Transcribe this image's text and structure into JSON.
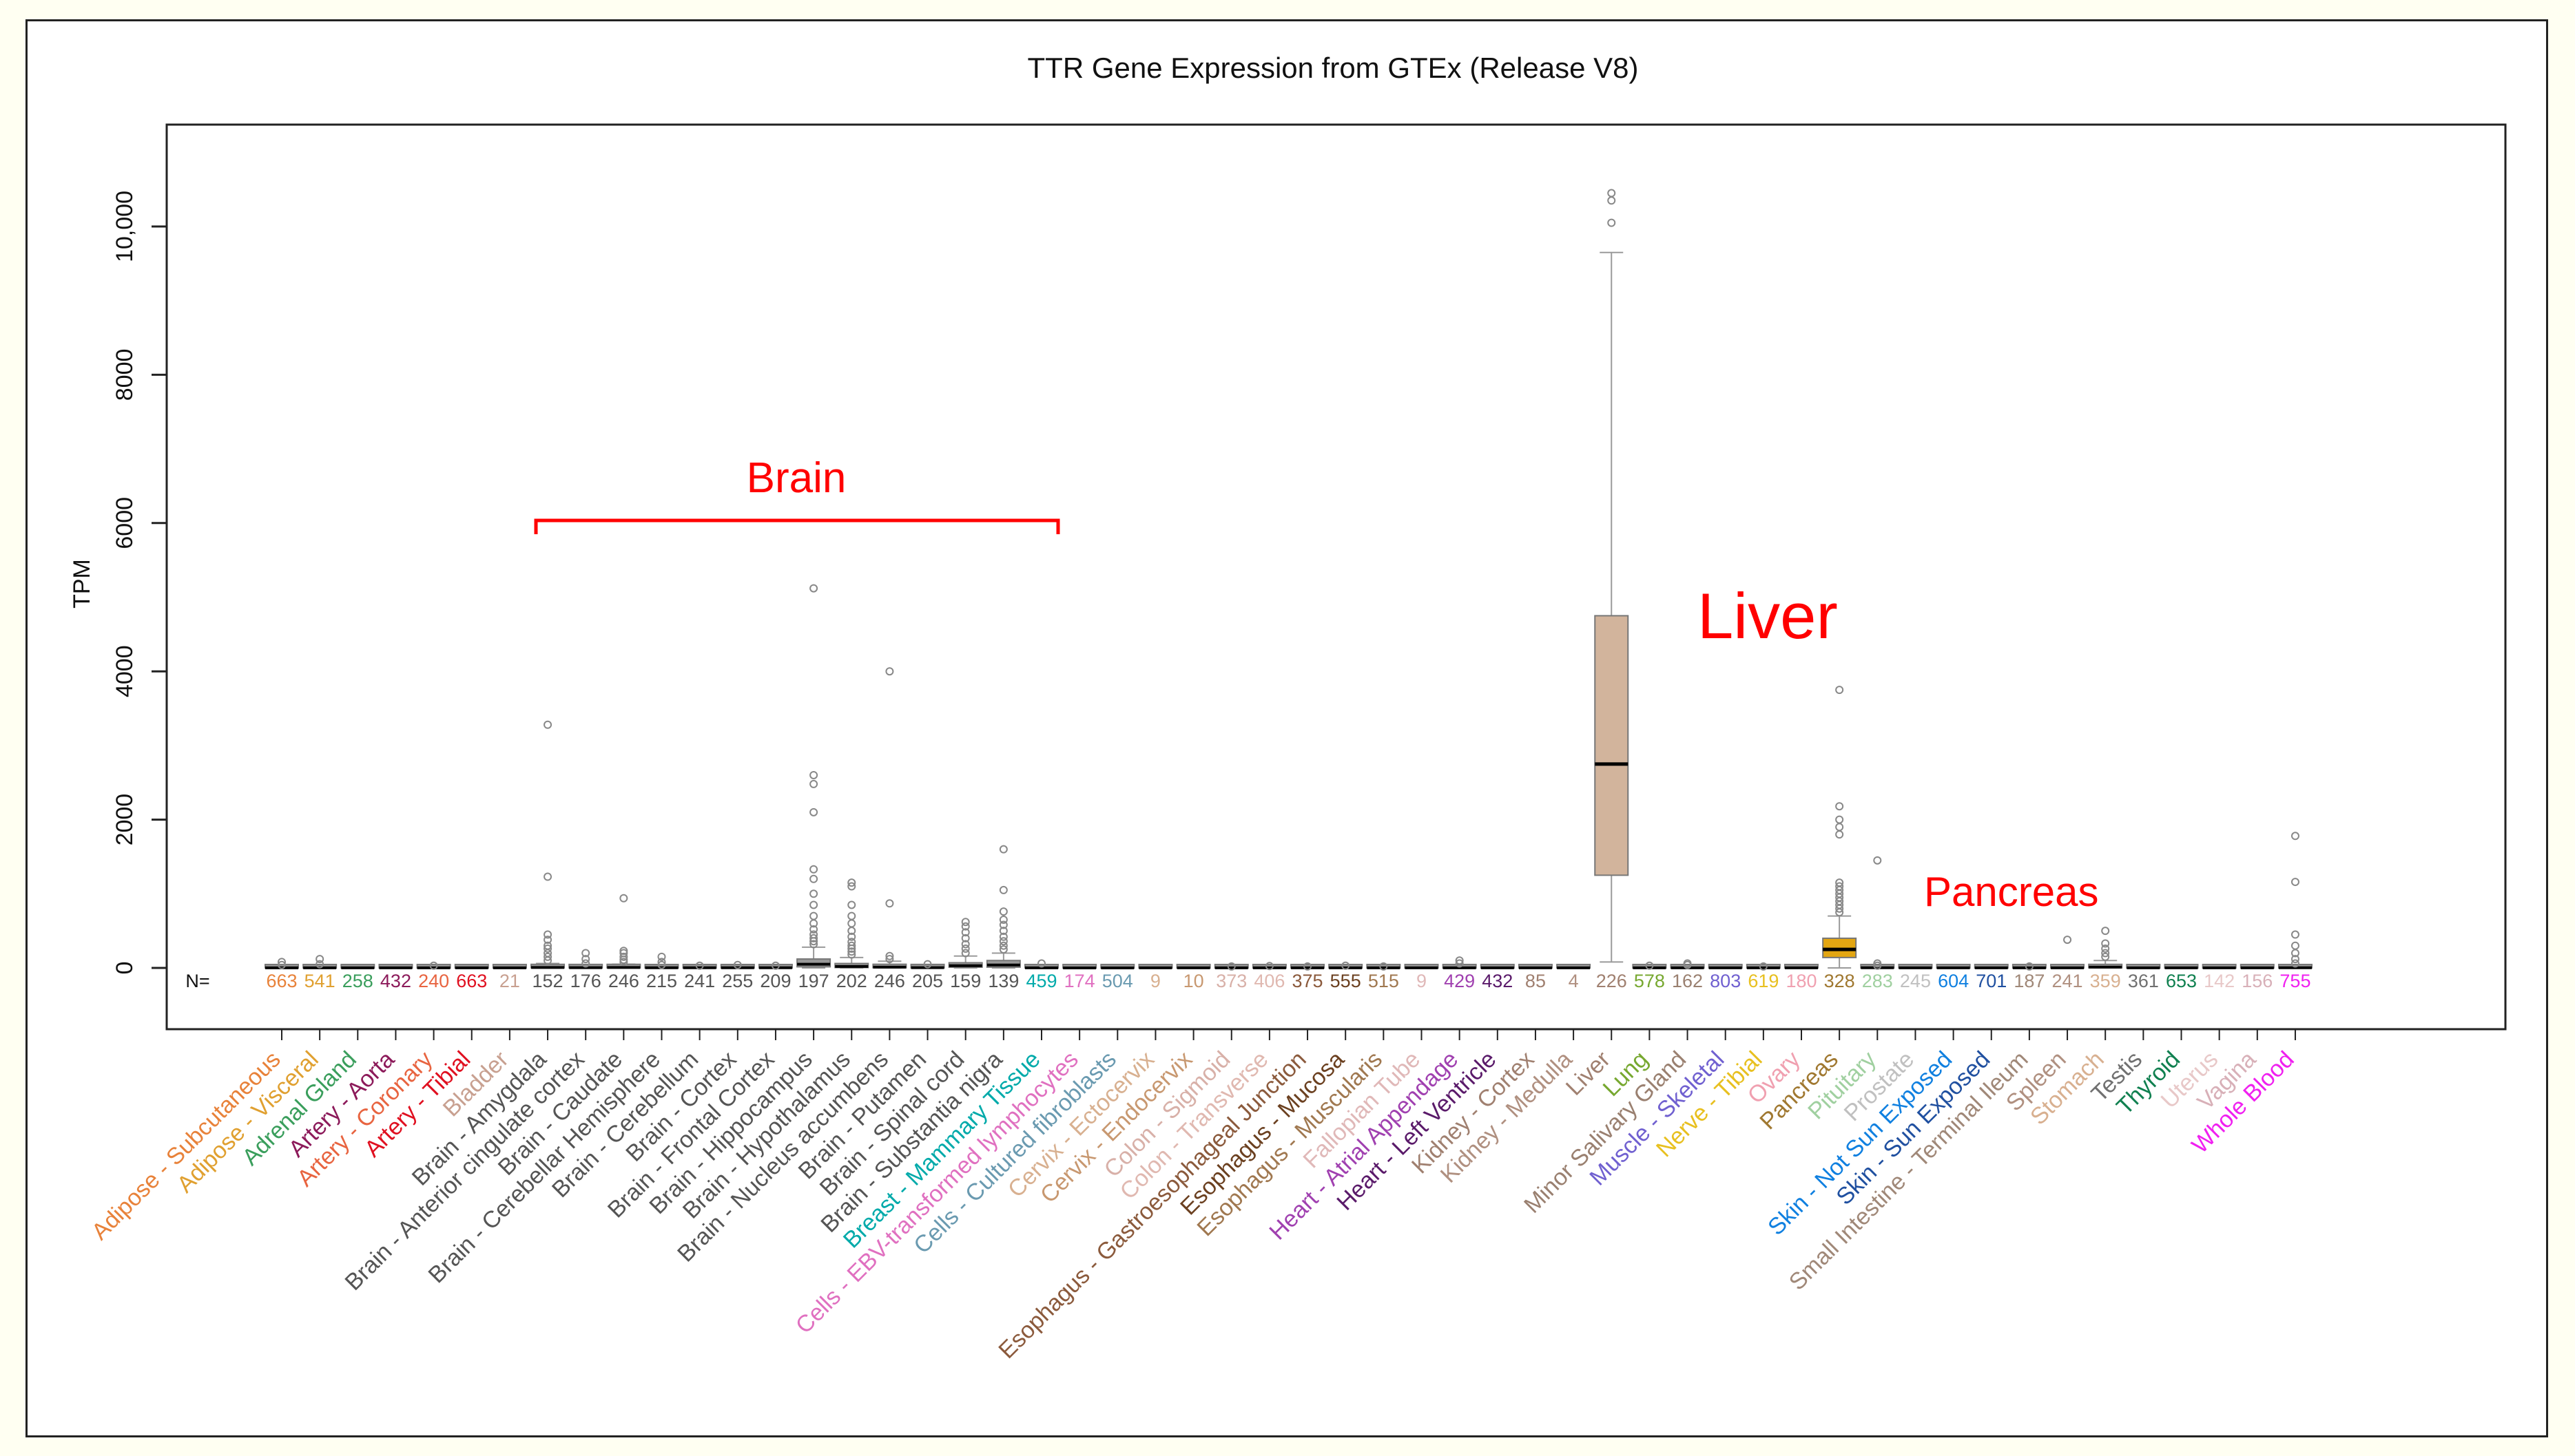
{
  "chart_data": {
    "type": "box",
    "title": "TTR Gene Expression from GTEx (Release V8)",
    "ylabel": "TPM",
    "xlabel": "",
    "ylim": [
      -650,
      11000
    ],
    "yticks": [
      0,
      2000,
      4000,
      6000,
      8000,
      10000
    ],
    "ytick_labels": [
      "0",
      "2000",
      "4000",
      "6000",
      "8000",
      "10,000"
    ],
    "n_prefix": "N=",
    "annotations": {
      "brain": "Brain",
      "liver": "Liver",
      "pancreas": "Pancreas"
    },
    "colors": {
      "default_box": "#999999",
      "liver_box": "#d2b49c",
      "pancreas_box": "#e3a612",
      "annotation": "#ff0000"
    },
    "categories": [
      {
        "label": "Adipose - Subcutaneous",
        "n": "663",
        "color": "#e8823a",
        "q1": 0,
        "median": 1,
        "q3": 3,
        "upper": 10,
        "outliers": [
          40,
          80
        ]
      },
      {
        "label": "Adipose - Visceral",
        "n": "541",
        "color": "#e0a030",
        "q1": 0,
        "median": 1,
        "q3": 4,
        "upper": 12,
        "outliers": [
          50,
          120
        ]
      },
      {
        "label": "Adrenal Gland",
        "n": "258",
        "color": "#3a9e5c",
        "q1": 0,
        "median": 1,
        "q3": 2,
        "upper": 6,
        "outliers": []
      },
      {
        "label": "Artery - Aorta",
        "n": "432",
        "color": "#8c1a5a",
        "q1": 0,
        "median": 1,
        "q3": 2,
        "upper": 6,
        "outliers": []
      },
      {
        "label": "Artery - Coronary",
        "n": "240",
        "color": "#e86440",
        "q1": 0,
        "median": 1,
        "q3": 2,
        "upper": 6,
        "outliers": [
          30
        ]
      },
      {
        "label": "Artery - Tibial",
        "n": "663",
        "color": "#e01020",
        "q1": 0,
        "median": 1,
        "q3": 2,
        "upper": 6,
        "outliers": []
      },
      {
        "label": "Bladder",
        "n": "21",
        "color": "#c8a090",
        "q1": 0,
        "median": 1,
        "q3": 2,
        "upper": 5,
        "outliers": []
      },
      {
        "label": "Brain - Amygdala",
        "n": "152",
        "color": "#555555",
        "q1": 2,
        "median": 6,
        "q3": 20,
        "upper": 60,
        "outliers": [
          100,
          150,
          200,
          260,
          300,
          380,
          450,
          1230,
          3280
        ]
      },
      {
        "label": "Brain - Anterior cingulate cortex",
        "n": "176",
        "color": "#555555",
        "q1": 1,
        "median": 4,
        "q3": 10,
        "upper": 30,
        "outliers": [
          60,
          120,
          200
        ]
      },
      {
        "label": "Brain - Caudate",
        "n": "246",
        "color": "#555555",
        "q1": 2,
        "median": 6,
        "q3": 20,
        "upper": 50,
        "outliers": [
          80,
          110,
          150,
          200,
          230,
          940
        ]
      },
      {
        "label": "Brain - Cerebellar Hemisphere",
        "n": "215",
        "color": "#555555",
        "q1": 0,
        "median": 2,
        "q3": 5,
        "upper": 15,
        "outliers": [
          40,
          80,
          150
        ]
      },
      {
        "label": "Brain - Cerebellum",
        "n": "241",
        "color": "#555555",
        "q1": 0,
        "median": 2,
        "q3": 5,
        "upper": 15,
        "outliers": [
          30
        ]
      },
      {
        "label": "Brain - Cortex",
        "n": "255",
        "color": "#555555",
        "q1": 0,
        "median": 2,
        "q3": 5,
        "upper": 15,
        "outliers": [
          40
        ]
      },
      {
        "label": "Brain - Frontal Cortex",
        "n": "209",
        "color": "#555555",
        "q1": 0,
        "median": 2,
        "q3": 5,
        "upper": 15,
        "outliers": [
          30
        ]
      },
      {
        "label": "Brain - Hippocampus",
        "n": "197",
        "color": "#555555",
        "q1": 15,
        "median": 50,
        "q3": 120,
        "upper": 280,
        "outliers": [
          320,
          360,
          400,
          450,
          520,
          600,
          700,
          850,
          1000,
          1200,
          1330,
          2100,
          2480,
          2600,
          5120
        ]
      },
      {
        "label": "Brain - Hypothalamus",
        "n": "202",
        "color": "#555555",
        "q1": 5,
        "median": 20,
        "q3": 60,
        "upper": 140,
        "outliers": [
          180,
          220,
          260,
          300,
          350,
          420,
          500,
          600,
          700,
          850,
          1100,
          1150
        ]
      },
      {
        "label": "Brain - Nucleus accumbens",
        "n": "246",
        "color": "#555555",
        "q1": 3,
        "median": 10,
        "q3": 40,
        "upper": 90,
        "outliers": [
          120,
          160,
          870,
          4000
        ]
      },
      {
        "label": "Brain - Putamen",
        "n": "205",
        "color": "#555555",
        "q1": 1,
        "median": 3,
        "q3": 10,
        "upper": 30,
        "outliers": [
          50
        ]
      },
      {
        "label": "Brain - Spinal cord",
        "n": "159",
        "color": "#555555",
        "q1": 10,
        "median": 30,
        "q3": 70,
        "upper": 160,
        "outliers": [
          200,
          260,
          320,
          400,
          480,
          560,
          620
        ]
      },
      {
        "label": "Brain - Substantia nigra",
        "n": "139",
        "color": "#555555",
        "q1": 10,
        "median": 40,
        "q3": 100,
        "upper": 200,
        "outliers": [
          250,
          300,
          360,
          420,
          500,
          580,
          650,
          760,
          1050,
          1600
        ]
      },
      {
        "label": "Breast - Mammary Tissue",
        "n": "459",
        "color": "#00aaaa",
        "q1": 0,
        "median": 1,
        "q3": 2,
        "upper": 6,
        "outliers": [
          60
        ]
      },
      {
        "label": "Cells - EBV-transformed lymphocytes",
        "n": "174",
        "color": "#e070c0",
        "q1": 0,
        "median": 0,
        "q3": 1,
        "upper": 2,
        "outliers": []
      },
      {
        "label": "Cells - Cultured fibroblasts",
        "n": "504",
        "color": "#6a9ab0",
        "q1": 0,
        "median": 0,
        "q3": 1,
        "upper": 2,
        "outliers": []
      },
      {
        "label": "Cervix - Ectocervix",
        "n": "9",
        "color": "#d8b090",
        "q1": 0,
        "median": 1,
        "q3": 2,
        "upper": 4,
        "outliers": []
      },
      {
        "label": "Cervix - Endocervix",
        "n": "10",
        "color": "#c89870",
        "q1": 0,
        "median": 1,
        "q3": 2,
        "upper": 4,
        "outliers": []
      },
      {
        "label": "Colon - Sigmoid",
        "n": "373",
        "color": "#d8b0a8",
        "q1": 0,
        "median": 1,
        "q3": 2,
        "upper": 6,
        "outliers": [
          20
        ]
      },
      {
        "label": "Colon - Transverse",
        "n": "406",
        "color": "#e0b8b0",
        "q1": 0,
        "median": 1,
        "q3": 2,
        "upper": 6,
        "outliers": [
          25
        ]
      },
      {
        "label": "Esophagus - Gastroesophageal Junction",
        "n": "375",
        "color": "#8b5a3c",
        "q1": 0,
        "median": 1,
        "q3": 2,
        "upper": 6,
        "outliers": [
          20
        ]
      },
      {
        "label": "Esophagus - Mucosa",
        "n": "555",
        "color": "#6b4020",
        "q1": 0,
        "median": 1,
        "q3": 2,
        "upper": 6,
        "outliers": [
          30
        ]
      },
      {
        "label": "Esophagus - Muscularis",
        "n": "515",
        "color": "#a07850",
        "q1": 0,
        "median": 1,
        "q3": 2,
        "upper": 6,
        "outliers": [
          20
        ]
      },
      {
        "label": "Fallopian Tube",
        "n": "9",
        "color": "#e0b8b8",
        "q1": 0,
        "median": 1,
        "q3": 2,
        "upper": 4,
        "outliers": []
      },
      {
        "label": "Heart - Atrial Appendage",
        "n": "429",
        "color": "#a040b0",
        "q1": 0,
        "median": 1,
        "q3": 2,
        "upper": 6,
        "outliers": [
          60,
          100
        ]
      },
      {
        "label": "Heart - Left Ventricle",
        "n": "432",
        "color": "#5a1a6a",
        "q1": 0,
        "median": 1,
        "q3": 2,
        "upper": 6,
        "outliers": []
      },
      {
        "label": "Kidney - Cortex",
        "n": "85",
        "color": "#a08070",
        "q1": 0,
        "median": 1,
        "q3": 2,
        "upper": 5,
        "outliers": []
      },
      {
        "label": "Kidney - Medulla",
        "n": "4",
        "color": "#b09080",
        "q1": 0,
        "median": 1,
        "q3": 2,
        "upper": 4,
        "outliers": []
      },
      {
        "label": "Liver",
        "n": "226",
        "color": "#a08070",
        "q1": 1250,
        "median": 2750,
        "q3": 4750,
        "upper": 9650,
        "lower": 80,
        "outliers": [
          10050,
          10350,
          10450
        ]
      },
      {
        "label": "Lung",
        "n": "578",
        "color": "#77a830",
        "q1": 0,
        "median": 1,
        "q3": 3,
        "upper": 8,
        "outliers": [
          30
        ]
      },
      {
        "label": "Minor Salivary Gland",
        "n": "162",
        "color": "#9a8070",
        "q1": 0,
        "median": 1,
        "q3": 3,
        "upper": 8,
        "outliers": [
          40,
          60
        ]
      },
      {
        "label": "Muscle - Skeletal",
        "n": "803",
        "color": "#7060d0",
        "q1": 0,
        "median": 1,
        "q3": 2,
        "upper": 6,
        "outliers": []
      },
      {
        "label": "Nerve - Tibial",
        "n": "619",
        "color": "#e8c020",
        "q1": 0,
        "median": 1,
        "q3": 2,
        "upper": 6,
        "outliers": [
          20
        ]
      },
      {
        "label": "Ovary",
        "n": "180",
        "color": "#f0a0b0",
        "q1": 0,
        "median": 1,
        "q3": 2,
        "upper": 6,
        "outliers": []
      },
      {
        "label": "Pancreas",
        "n": "328",
        "color": "#a07830",
        "q1": 140,
        "median": 250,
        "q3": 400,
        "upper": 700,
        "outliers": [
          750,
          800,
          850,
          900,
          950,
          1000,
          1050,
          1100,
          1150,
          1800,
          1900,
          2000,
          2180,
          3750
        ]
      },
      {
        "label": "Pituitary",
        "n": "283",
        "color": "#a0d0a0",
        "q1": 0,
        "median": 2,
        "q3": 6,
        "upper": 15,
        "outliers": [
          30,
          60,
          1450
        ]
      },
      {
        "label": "Prostate",
        "n": "245",
        "color": "#c0c0c0",
        "q1": 0,
        "median": 1,
        "q3": 2,
        "upper": 6,
        "outliers": []
      },
      {
        "label": "Skin - Not Sun Exposed",
        "n": "604",
        "color": "#1080e0",
        "q1": 0,
        "median": 1,
        "q3": 2,
        "upper": 6,
        "outliers": []
      },
      {
        "label": "Skin - Sun Exposed",
        "n": "701",
        "color": "#2050a0",
        "q1": 0,
        "median": 1,
        "q3": 2,
        "upper": 6,
        "outliers": []
      },
      {
        "label": "Small Intestine - Terminal Ileum",
        "n": "187",
        "color": "#a08878",
        "q1": 0,
        "median": 1,
        "q3": 2,
        "upper": 6,
        "outliers": [
          20
        ]
      },
      {
        "label": "Spleen",
        "n": "241",
        "color": "#b09080",
        "q1": 0,
        "median": 1,
        "q3": 3,
        "upper": 8,
        "outliers": [
          380
        ]
      },
      {
        "label": "Stomach",
        "n": "359",
        "color": "#d8b090",
        "q1": 2,
        "median": 10,
        "q3": 40,
        "upper": 100,
        "outliers": [
          150,
          200,
          260,
          330,
          500
        ]
      },
      {
        "label": "Testis",
        "n": "361",
        "color": "#707070",
        "q1": 0,
        "median": 1,
        "q3": 2,
        "upper": 6,
        "outliers": []
      },
      {
        "label": "Thyroid",
        "n": "653",
        "color": "#108050",
        "q1": 0,
        "median": 1,
        "q3": 2,
        "upper": 6,
        "outliers": []
      },
      {
        "label": "Uterus",
        "n": "142",
        "color": "#e8c8c8",
        "q1": 0,
        "median": 1,
        "q3": 2,
        "upper": 6,
        "outliers": []
      },
      {
        "label": "Vagina",
        "n": "156",
        "color": "#d8b0b8",
        "q1": 0,
        "median": 1,
        "q3": 2,
        "upper": 6,
        "outliers": []
      },
      {
        "label": "Whole Blood",
        "n": "755",
        "color": "#f020f0",
        "q1": 0,
        "median": 2,
        "q3": 8,
        "upper": 25,
        "outliers": [
          60,
          120,
          200,
          300,
          450,
          1160,
          1780
        ]
      }
    ]
  }
}
